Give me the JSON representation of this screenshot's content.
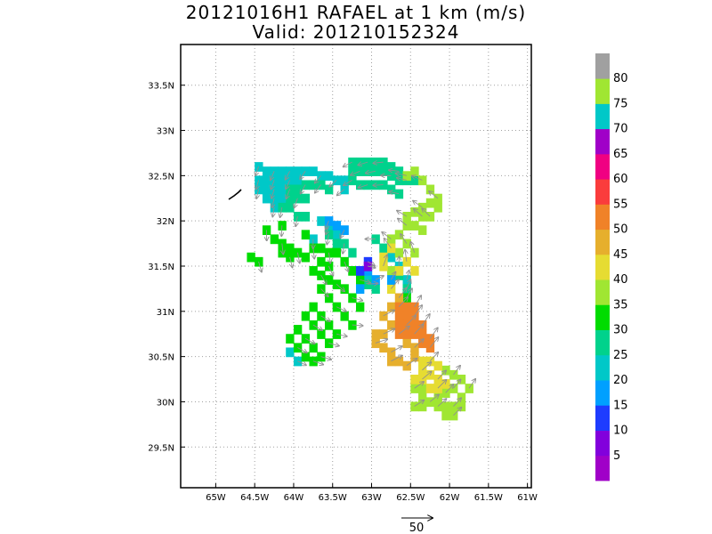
{
  "title_line1": "20121016H1 RAFAEL at 1 km (m/s)",
  "title_line2": "Valid: 201210152324",
  "chart_data": {
    "type": "heatmap",
    "title": "20121016H1 RAFAEL at 1 km (m/s)",
    "subtitle": "Valid: 201210152324",
    "xlim": [
      -65.45,
      -60.95
    ],
    "ylim": [
      29.05,
      33.95
    ],
    "x_ticks": [
      {
        "value": -65.0,
        "label": "65W"
      },
      {
        "value": -64.5,
        "label": "64.5W"
      },
      {
        "value": -64.0,
        "label": "64W"
      },
      {
        "value": -63.5,
        "label": "63.5W"
      },
      {
        "value": -63.0,
        "label": "63W"
      },
      {
        "value": -62.5,
        "label": "62.5W"
      },
      {
        "value": -62.0,
        "label": "62W"
      },
      {
        "value": -61.5,
        "label": "61.5W"
      },
      {
        "value": -61.0,
        "label": "61W"
      }
    ],
    "y_ticks": [
      {
        "value": 29.5,
        "label": "29.5N"
      },
      {
        "value": 30.0,
        "label": "30N"
      },
      {
        "value": 30.5,
        "label": "30.5N"
      },
      {
        "value": 31.0,
        "label": "31N"
      },
      {
        "value": 31.5,
        "label": "31.5N"
      },
      {
        "value": 32.0,
        "label": "32N"
      },
      {
        "value": 32.5,
        "label": "32.5N"
      },
      {
        "value": 33.0,
        "label": "33N"
      },
      {
        "value": 33.5,
        "label": "33.5N"
      }
    ],
    "grid": true,
    "colorbar": {
      "labels": [
        "5",
        "10",
        "15",
        "20",
        "25",
        "30",
        "35",
        "40",
        "45",
        "50",
        "55",
        "60",
        "65",
        "70",
        "75",
        "80"
      ],
      "colors": [
        "#a000c8",
        "#8200dc",
        "#1e3cff",
        "#00a0ff",
        "#00c8c8",
        "#00d28c",
        "#00dc00",
        "#a0e632",
        "#e6dc32",
        "#e6af2d",
        "#f08228",
        "#fa3c3c",
        "#f00082",
        "#a000c8",
        "#00c8c8",
        "#a0e632",
        "#a0a0a0"
      ]
    },
    "reference_vector": {
      "label": "50",
      "value": 50,
      "unit": "m/s"
    },
    "regions": [
      {
        "value": 20,
        "cells": [
          [
            -64.45,
            32.6
          ],
          [
            -64.35,
            32.55
          ],
          [
            -64.25,
            32.55
          ],
          [
            -64.15,
            32.55
          ],
          [
            -64.05,
            32.55
          ],
          [
            -63.95,
            32.55
          ],
          [
            -63.85,
            32.55
          ],
          [
            -63.75,
            32.55
          ],
          [
            -63.65,
            32.5
          ],
          [
            -63.55,
            32.5
          ],
          [
            -64.45,
            32.45
          ],
          [
            -64.35,
            32.45
          ],
          [
            -64.25,
            32.45
          ],
          [
            -64.15,
            32.45
          ],
          [
            -64.05,
            32.45
          ],
          [
            -63.95,
            32.45
          ],
          [
            -63.45,
            32.45
          ],
          [
            -63.35,
            32.45
          ],
          [
            -64.45,
            32.35
          ],
          [
            -64.35,
            32.35
          ],
          [
            -64.25,
            32.35
          ],
          [
            -64.15,
            32.35
          ],
          [
            -63.35,
            32.35
          ],
          [
            -64.35,
            32.25
          ],
          [
            -64.25,
            32.25
          ],
          [
            -64.15,
            32.25
          ],
          [
            -64.25,
            32.15
          ],
          [
            -63.65,
            32.0
          ],
          [
            -63.55,
            31.95
          ],
          [
            -63.45,
            31.85
          ],
          [
            -63.75,
            31.8
          ],
          [
            -62.75,
            31.6
          ],
          [
            -62.65,
            31.5
          ],
          [
            -63.05,
            31.4
          ],
          [
            -62.55,
            31.35
          ],
          [
            -64.05,
            30.55
          ],
          [
            -63.95,
            30.45
          ]
        ]
      },
      {
        "value": 25,
        "cells": [
          [
            -64.05,
            32.35
          ],
          [
            -63.95,
            32.35
          ],
          [
            -63.85,
            32.4
          ],
          [
            -63.75,
            32.4
          ],
          [
            -63.65,
            32.4
          ],
          [
            -63.55,
            32.35
          ],
          [
            -63.25,
            32.65
          ],
          [
            -63.15,
            32.65
          ],
          [
            -63.05,
            32.65
          ],
          [
            -62.95,
            32.65
          ],
          [
            -62.85,
            32.65
          ],
          [
            -62.75,
            32.6
          ],
          [
            -62.65,
            32.55
          ],
          [
            -63.25,
            32.55
          ],
          [
            -63.15,
            32.55
          ],
          [
            -63.05,
            32.55
          ],
          [
            -62.95,
            32.55
          ],
          [
            -62.85,
            32.55
          ],
          [
            -62.75,
            32.5
          ],
          [
            -62.65,
            32.45
          ],
          [
            -62.55,
            32.45
          ],
          [
            -62.45,
            32.45
          ],
          [
            -63.25,
            32.45
          ],
          [
            -63.15,
            32.4
          ],
          [
            -63.05,
            32.4
          ],
          [
            -62.95,
            32.4
          ],
          [
            -62.85,
            32.4
          ],
          [
            -62.75,
            32.35
          ],
          [
            -62.65,
            32.3
          ],
          [
            -64.05,
            32.25
          ],
          [
            -63.95,
            32.25
          ],
          [
            -63.85,
            32.25
          ],
          [
            -64.15,
            32.15
          ],
          [
            -64.05,
            32.15
          ],
          [
            -63.95,
            32.05
          ],
          [
            -63.85,
            32.05
          ],
          [
            -63.55,
            31.85
          ],
          [
            -63.45,
            31.75
          ],
          [
            -63.35,
            31.75
          ],
          [
            -63.25,
            31.65
          ],
          [
            -62.95,
            31.8
          ],
          [
            -62.85,
            31.7
          ],
          [
            -63.05,
            31.3
          ],
          [
            -62.95,
            31.25
          ],
          [
            -62.55,
            31.25
          ],
          [
            -62.65,
            31.4
          ]
        ]
      },
      {
        "value": 30,
        "cells": [
          [
            -64.15,
            31.95
          ],
          [
            -63.85,
            31.85
          ],
          [
            -63.75,
            31.7
          ],
          [
            -63.65,
            31.7
          ],
          [
            -63.55,
            31.65
          ],
          [
            -63.45,
            31.65
          ],
          [
            -63.35,
            31.55
          ],
          [
            -63.25,
            31.45
          ],
          [
            -63.15,
            31.35
          ],
          [
            -63.85,
            31.6
          ],
          [
            -63.95,
            31.65
          ],
          [
            -64.05,
            31.7
          ],
          [
            -64.15,
            31.75
          ],
          [
            -64.25,
            31.8
          ],
          [
            -64.35,
            31.9
          ],
          [
            -63.65,
            31.55
          ],
          [
            -63.55,
            31.5
          ],
          [
            -63.75,
            31.45
          ],
          [
            -63.65,
            31.4
          ],
          [
            -63.55,
            31.35
          ],
          [
            -63.45,
            31.3
          ],
          [
            -63.35,
            31.25
          ],
          [
            -63.25,
            31.15
          ],
          [
            -63.15,
            31.05
          ],
          [
            -63.65,
            31.25
          ],
          [
            -63.55,
            31.15
          ],
          [
            -63.45,
            31.05
          ],
          [
            -63.35,
            30.95
          ],
          [
            -63.25,
            30.85
          ],
          [
            -63.75,
            31.05
          ],
          [
            -63.65,
            30.95
          ],
          [
            -63.55,
            30.85
          ],
          [
            -63.45,
            30.75
          ],
          [
            -63.85,
            30.95
          ],
          [
            -63.75,
            30.85
          ],
          [
            -63.65,
            30.75
          ],
          [
            -63.55,
            30.65
          ],
          [
            -63.95,
            30.8
          ],
          [
            -63.85,
            30.7
          ],
          [
            -63.75,
            30.6
          ],
          [
            -63.65,
            30.5
          ],
          [
            -64.05,
            30.7
          ],
          [
            -63.95,
            30.6
          ],
          [
            -63.85,
            30.5
          ],
          [
            -63.75,
            30.45
          ],
          [
            -64.55,
            31.6
          ],
          [
            -64.45,
            31.55
          ],
          [
            -64.15,
            31.65
          ],
          [
            -64.05,
            31.6
          ],
          [
            -62.65,
            31.05
          ],
          [
            -62.55,
            31.15
          ]
        ]
      },
      {
        "value": 35,
        "cells": [
          [
            -62.55,
            32.5
          ],
          [
            -62.45,
            32.55
          ],
          [
            -62.35,
            32.45
          ],
          [
            -62.25,
            32.35
          ],
          [
            -62.15,
            32.25
          ],
          [
            -62.25,
            32.2
          ],
          [
            -62.35,
            32.15
          ],
          [
            -62.45,
            32.1
          ],
          [
            -62.55,
            32.05
          ],
          [
            -62.15,
            32.15
          ],
          [
            -62.35,
            32.05
          ],
          [
            -62.45,
            31.95
          ],
          [
            -62.55,
            31.95
          ],
          [
            -62.65,
            31.85
          ],
          [
            -62.75,
            31.8
          ],
          [
            -62.65,
            31.65
          ],
          [
            -62.55,
            31.75
          ],
          [
            -62.75,
            31.45
          ],
          [
            -62.45,
            31.65
          ],
          [
            -62.35,
            31.9
          ],
          [
            -62.25,
            32.05
          ],
          [
            -62.05,
            30.35
          ],
          [
            -61.95,
            30.3
          ],
          [
            -61.85,
            30.25
          ],
          [
            -62.05,
            30.1
          ],
          [
            -62.15,
            30.05
          ],
          [
            -62.25,
            30.0
          ],
          [
            -62.35,
            30.05
          ],
          [
            -61.95,
            30.15
          ],
          [
            -61.85,
            30.05
          ],
          [
            -62.45,
            29.95
          ],
          [
            -62.35,
            29.95
          ],
          [
            -62.15,
            29.95
          ],
          [
            -62.05,
            29.95
          ],
          [
            -61.95,
            29.95
          ],
          [
            -62.05,
            29.85
          ],
          [
            -61.95,
            29.85
          ],
          [
            -61.85,
            29.95
          ],
          [
            -62.45,
            30.15
          ],
          [
            -62.35,
            30.15
          ],
          [
            -61.75,
            30.15
          ]
        ]
      },
      {
        "value": 40,
        "cells": [
          [
            -62.75,
            31.7
          ],
          [
            -62.85,
            31.6
          ],
          [
            -62.85,
            31.5
          ],
          [
            -62.65,
            31.45
          ],
          [
            -62.55,
            31.55
          ],
          [
            -62.45,
            31.45
          ],
          [
            -62.75,
            31.25
          ],
          [
            -62.35,
            30.45
          ],
          [
            -62.25,
            30.45
          ],
          [
            -62.15,
            30.4
          ],
          [
            -62.35,
            30.35
          ],
          [
            -62.25,
            30.3
          ],
          [
            -62.15,
            30.25
          ],
          [
            -62.45,
            30.25
          ],
          [
            -62.35,
            30.25
          ],
          [
            -62.25,
            30.15
          ],
          [
            -62.15,
            30.15
          ],
          [
            -62.05,
            30.2
          ]
        ]
      },
      {
        "value": 45,
        "cells": [
          [
            -62.85,
            30.95
          ],
          [
            -62.75,
            31.05
          ],
          [
            -62.65,
            31.15
          ],
          [
            -62.75,
            30.85
          ],
          [
            -62.85,
            30.75
          ],
          [
            -62.95,
            30.75
          ],
          [
            -62.95,
            30.65
          ],
          [
            -62.85,
            30.6
          ],
          [
            -62.75,
            30.55
          ],
          [
            -62.65,
            30.45
          ],
          [
            -62.75,
            30.45
          ],
          [
            -62.55,
            30.65
          ],
          [
            -62.55,
            30.4
          ],
          [
            -62.45,
            30.5
          ],
          [
            -62.45,
            30.6
          ]
        ]
      },
      {
        "value": 50,
        "cells": [
          [
            -62.65,
            31.05
          ],
          [
            -62.55,
            31.05
          ],
          [
            -62.45,
            31.05
          ],
          [
            -62.55,
            30.95
          ],
          [
            -62.45,
            30.95
          ],
          [
            -62.65,
            30.95
          ],
          [
            -62.55,
            30.85
          ],
          [
            -62.45,
            30.85
          ],
          [
            -62.35,
            30.85
          ],
          [
            -62.65,
            30.85
          ],
          [
            -62.65,
            30.75
          ],
          [
            -62.55,
            30.75
          ],
          [
            -62.45,
            30.75
          ],
          [
            -62.35,
            30.75
          ],
          [
            -62.25,
            30.7
          ],
          [
            -62.35,
            30.65
          ],
          [
            -62.25,
            30.6
          ]
        ]
      },
      {
        "value": 15,
        "cells": [
          [
            -63.55,
            32.0
          ],
          [
            -63.45,
            31.95
          ],
          [
            -63.35,
            31.9
          ],
          [
            -63.05,
            31.45
          ],
          [
            -62.95,
            31.35
          ],
          [
            -63.15,
            31.25
          ],
          [
            -62.75,
            31.35
          ]
        ]
      },
      {
        "value": 10,
        "cells": [
          [
            -63.05,
            31.55
          ],
          [
            -63.15,
            31.45
          ]
        ]
      },
      {
        "value": 5,
        "cells": [
          [
            -63.05,
            31.5
          ]
        ]
      }
    ]
  }
}
